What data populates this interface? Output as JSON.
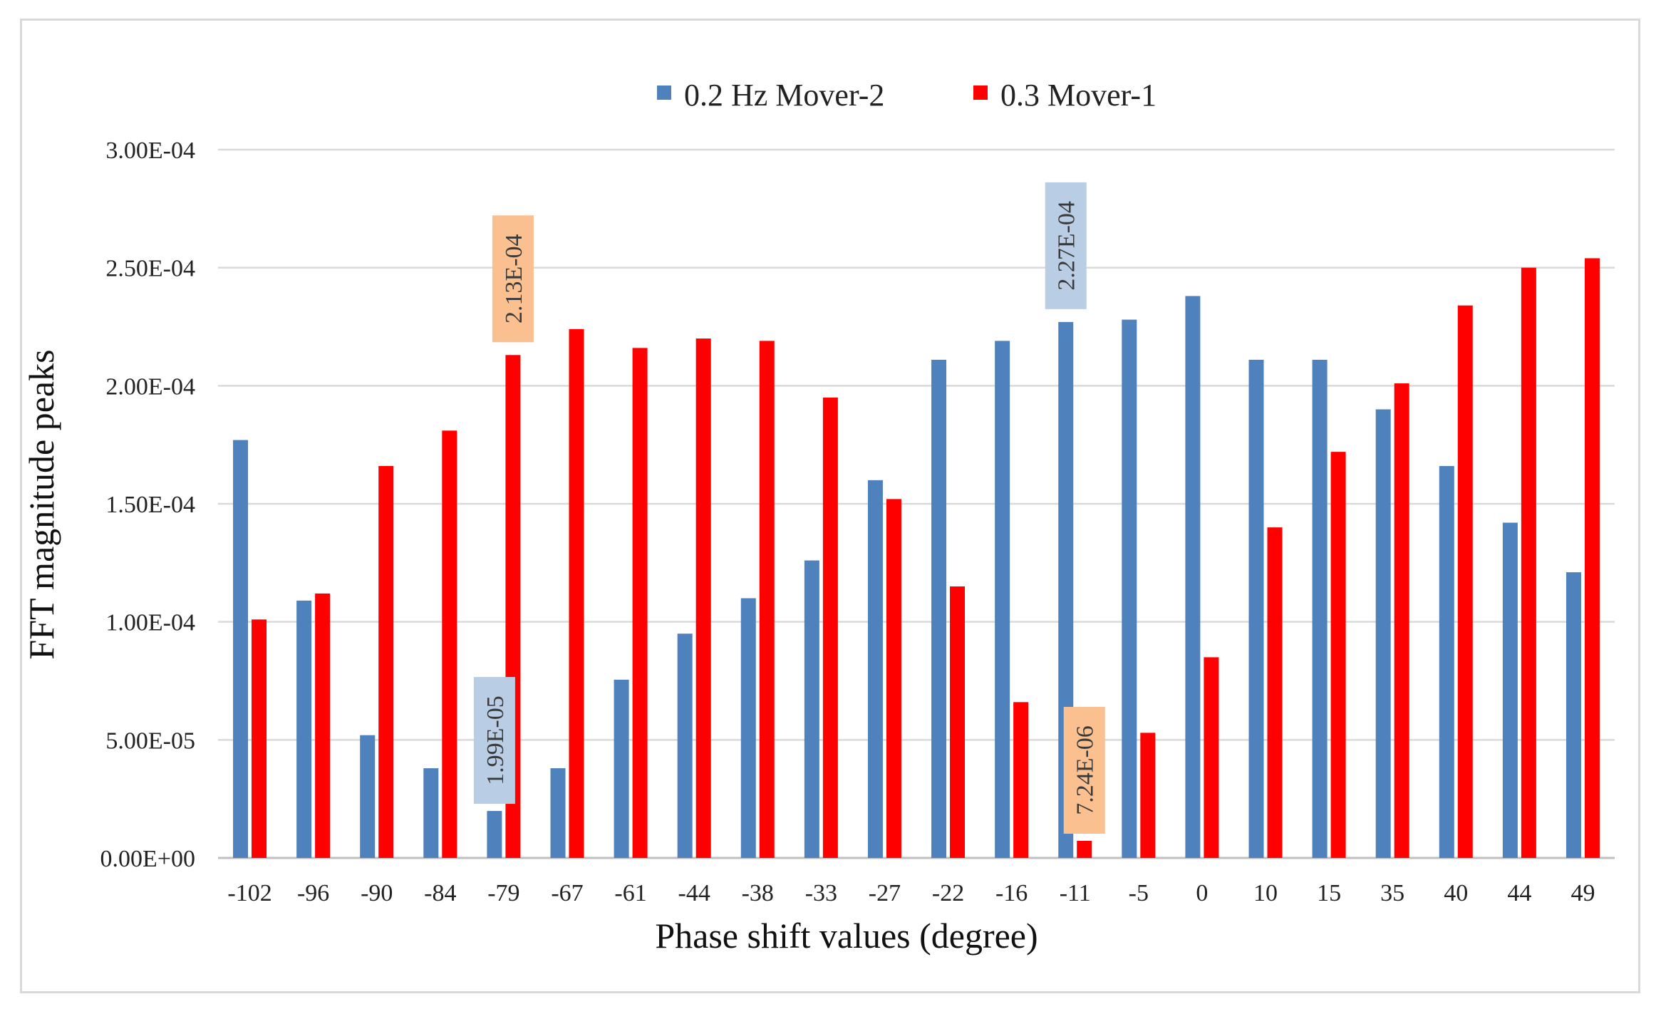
{
  "chart_data": {
    "type": "bar",
    "title": "",
    "xlabel": "Phase shift values (degree)",
    "ylabel": "FFT magnitude peaks",
    "ylim": [
      0,
      0.0003
    ],
    "yticks": [
      0,
      5e-05,
      0.0001,
      0.00015,
      0.0002,
      0.00025,
      0.0003
    ],
    "ytick_labels": [
      "0.00E+00",
      "5.00E-05",
      "1.00E-04",
      "1.50E-04",
      "2.00E-04",
      "2.50E-04",
      "3.00E-04"
    ],
    "grid": true,
    "legend_position": "top-center",
    "categories": [
      "-102",
      "-96",
      "-90",
      "-84",
      "-79",
      "-67",
      "-61",
      "-44",
      "-38",
      "-33",
      "-27",
      "-22",
      "-16",
      "-11",
      "-5",
      "0",
      "10",
      "15",
      "35",
      "40",
      "44",
      "49"
    ],
    "series": [
      {
        "name": "0.2 Hz Mover-2",
        "color": "#4f81bd",
        "values": [
          0.000177,
          0.000109,
          5.2e-05,
          3.8e-05,
          1.99e-05,
          3.8e-05,
          7.55e-05,
          9.5e-05,
          0.00011,
          0.000126,
          0.00016,
          0.000211,
          0.000219,
          0.000227,
          0.000228,
          0.000238,
          0.000211,
          0.000211,
          0.00019,
          0.000166,
          0.000142,
          0.000121
        ]
      },
      {
        "name": "0.3 Mover-1",
        "color": "#ff0000",
        "values": [
          0.000101,
          0.000112,
          0.000166,
          0.000181,
          0.000213,
          0.000224,
          0.000216,
          0.00022,
          0.000219,
          0.000195,
          0.000152,
          0.000115,
          6.6e-05,
          7.24e-06,
          5.3e-05,
          8.5e-05,
          0.00014,
          0.000172,
          0.000201,
          0.000234,
          0.00025,
          0.000254
        ]
      }
    ],
    "annotations": [
      {
        "text": "2.13E-04",
        "series": 1,
        "category": "-79",
        "fill": "#fac090",
        "rotated": true
      },
      {
        "text": "1.99E-05",
        "series": 0,
        "category": "-79",
        "fill": "#b9cde5",
        "rotated": true
      },
      {
        "text": "2.27E-04",
        "series": 0,
        "category": "-11",
        "fill": "#b9cde5",
        "rotated": true
      },
      {
        "text": "7.24E-06",
        "series": 1,
        "category": "-11",
        "fill": "#fac090",
        "rotated": true
      }
    ]
  }
}
